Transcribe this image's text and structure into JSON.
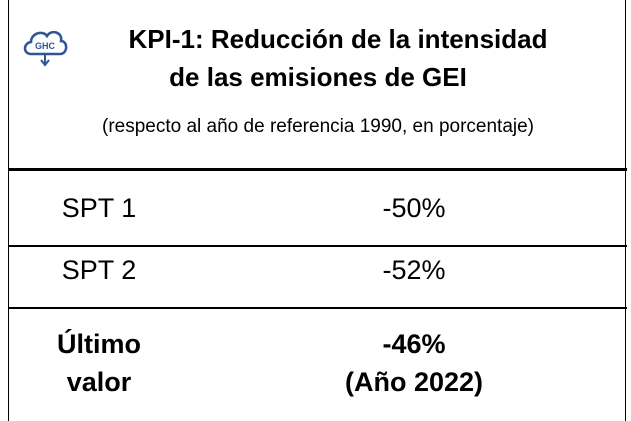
{
  "header": {
    "icon_label": "GHC",
    "title": [
      "KPI-1: Reducción de la intensidad",
      "de las emisiones de GEI"
    ],
    "subtitle": "(respecto al año de referencia 1990, en porcentaje)"
  },
  "table": {
    "rows": [
      {
        "label": "SPT 1",
        "value": "-50%"
      },
      {
        "label": "SPT 2",
        "value": "-52%"
      },
      {
        "label": [
          "Último",
          "valor"
        ],
        "value": [
          "-46%",
          "(Año 2022)"
        ],
        "bold": true
      }
    ]
  }
}
